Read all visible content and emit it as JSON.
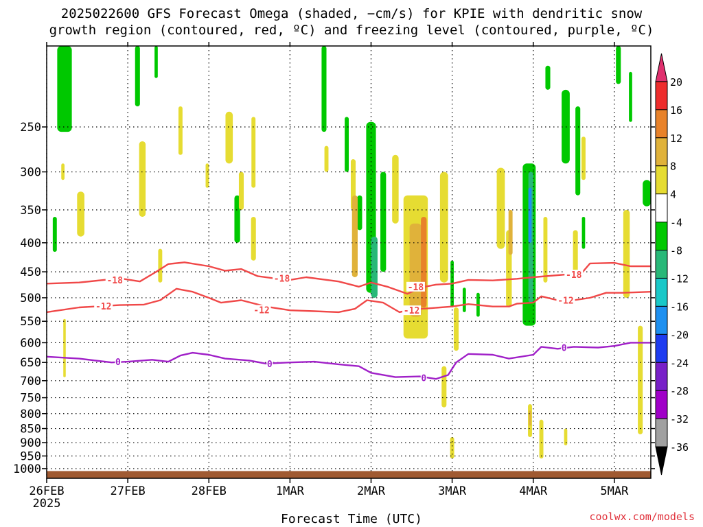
{
  "chart_data": {
    "type": "heatmap",
    "title_line1": "2025022600 GFS Forecast Omega (shaded, −cm/s) for KPIE with dendritic snow",
    "title_line2": "growth region (contoured, red, ºC) and freezing level (contoured, purple, ºC)",
    "xlabel": "Forecast Time (UTC)",
    "credit": "coolwx.com/models",
    "x_ticks": [
      {
        "label": "26FEB",
        "day": 0,
        "sublabel": "2025"
      },
      {
        "label": "27FEB",
        "day": 1
      },
      {
        "label": "28FEB",
        "day": 2
      },
      {
        "label": "1MAR",
        "day": 3
      },
      {
        "label": "2MAR",
        "day": 4
      },
      {
        "label": "3MAR",
        "day": 5
      },
      {
        "label": "4MAR",
        "day": 6
      },
      {
        "label": "5MAR",
        "day": 7
      }
    ],
    "x_range_days": [
      0,
      7.45
    ],
    "y_range_hPa": [
      1040,
      180
    ],
    "y_ticks": [
      250,
      300,
      350,
      400,
      450,
      500,
      550,
      600,
      650,
      700,
      750,
      800,
      850,
      900,
      950,
      1000
    ],
    "grid": true,
    "colorbar": {
      "labels": [
        20,
        16,
        12,
        8,
        4,
        -4,
        -8,
        -12,
        -16,
        -20,
        -24,
        -28,
        -32,
        -36
      ],
      "colors": [
        "#e0306e",
        "#ee2c2c",
        "#e8822a",
        "#e0b23a",
        "#e6dc32",
        "#ffffff",
        "#00c800",
        "#28b878",
        "#19c8c8",
        "#1e90f0",
        "#1e3cf0",
        "#7820c8",
        "#a000c8",
        "#a0a0a0",
        "#000000"
      ]
    },
    "series": [
      {
        "name": "-18",
        "color": "#f04848",
        "points": [
          [
            0,
            472
          ],
          [
            0.4,
            470
          ],
          [
            0.9,
            462
          ],
          [
            1.15,
            468
          ],
          [
            1.35,
            450
          ],
          [
            1.5,
            436
          ],
          [
            1.7,
            433
          ],
          [
            2.0,
            440
          ],
          [
            2.2,
            448
          ],
          [
            2.4,
            445
          ],
          [
            2.6,
            458
          ],
          [
            2.8,
            462
          ],
          [
            3.0,
            465
          ],
          [
            3.2,
            460
          ],
          [
            3.6,
            468
          ],
          [
            3.85,
            478
          ],
          [
            4.0,
            470
          ],
          [
            4.2,
            478
          ],
          [
            4.45,
            492
          ],
          [
            4.6,
            480
          ],
          [
            4.8,
            474
          ],
          [
            5.0,
            472
          ],
          [
            5.2,
            465
          ],
          [
            5.5,
            466
          ],
          [
            5.8,
            463
          ],
          [
            6.0,
            460
          ],
          [
            6.4,
            455
          ],
          [
            6.6,
            452
          ],
          [
            6.7,
            435
          ],
          [
            7.0,
            434
          ],
          [
            7.2,
            440
          ],
          [
            7.45,
            440
          ]
        ]
      },
      {
        "name": "-12",
        "color": "#f04848",
        "points": [
          [
            0,
            530
          ],
          [
            0.4,
            520
          ],
          [
            0.9,
            515
          ],
          [
            1.2,
            514
          ],
          [
            1.4,
            505
          ],
          [
            1.6,
            482
          ],
          [
            1.8,
            488
          ],
          [
            2.0,
            500
          ],
          [
            2.15,
            510
          ],
          [
            2.4,
            505
          ],
          [
            2.7,
            518
          ],
          [
            3.0,
            526
          ],
          [
            3.3,
            528
          ],
          [
            3.6,
            530
          ],
          [
            3.8,
            523
          ],
          [
            3.95,
            505
          ],
          [
            4.15,
            510
          ],
          [
            4.35,
            530
          ],
          [
            4.5,
            524
          ],
          [
            4.7,
            522
          ],
          [
            5.0,
            518
          ],
          [
            5.2,
            513
          ],
          [
            5.5,
            518
          ],
          [
            5.7,
            518
          ],
          [
            5.8,
            512
          ],
          [
            6.0,
            510
          ],
          [
            6.1,
            497
          ],
          [
            6.3,
            505
          ],
          [
            6.5,
            505
          ],
          [
            6.7,
            500
          ],
          [
            6.9,
            490
          ],
          [
            7.1,
            490
          ],
          [
            7.45,
            488
          ]
        ]
      },
      {
        "name": "0",
        "color": "#a020c8",
        "points": [
          [
            0,
            635
          ],
          [
            0.4,
            640
          ],
          [
            0.8,
            650
          ],
          [
            1.0,
            648
          ],
          [
            1.3,
            643
          ],
          [
            1.5,
            648
          ],
          [
            1.65,
            632
          ],
          [
            1.8,
            625
          ],
          [
            2.0,
            630
          ],
          [
            2.2,
            640
          ],
          [
            2.5,
            645
          ],
          [
            2.7,
            653
          ],
          [
            3.0,
            650
          ],
          [
            3.3,
            648
          ],
          [
            3.6,
            655
          ],
          [
            3.85,
            660
          ],
          [
            4.0,
            678
          ],
          [
            4.3,
            690
          ],
          [
            4.6,
            688
          ],
          [
            4.8,
            695
          ],
          [
            4.95,
            684
          ],
          [
            5.05,
            650
          ],
          [
            5.2,
            628
          ],
          [
            5.5,
            630
          ],
          [
            5.7,
            640
          ],
          [
            6.0,
            630
          ],
          [
            6.1,
            610
          ],
          [
            6.3,
            615
          ],
          [
            6.5,
            610
          ],
          [
            6.8,
            612
          ],
          [
            7.0,
            608
          ],
          [
            7.2,
            600
          ],
          [
            7.45,
            600
          ]
        ]
      }
    ],
    "contour_labels": [
      {
        "text": "-18",
        "day": 0.84,
        "p": 465
      },
      {
        "text": "-18",
        "day": 2.9,
        "p": 462
      },
      {
        "text": "-18",
        "day": 4.55,
        "p": 478
      },
      {
        "text": "-18",
        "day": 6.5,
        "p": 455
      },
      {
        "text": "-12",
        "day": 0.7,
        "p": 517
      },
      {
        "text": "-12",
        "day": 2.65,
        "p": 525
      },
      {
        "text": "-12",
        "day": 4.5,
        "p": 526
      },
      {
        "text": "-12",
        "day": 6.4,
        "p": 505
      },
      {
        "text": "0",
        "day": 0.88,
        "p": 648
      },
      {
        "text": "0",
        "day": 2.75,
        "p": 653
      },
      {
        "text": "0",
        "day": 4.65,
        "p": 692
      },
      {
        "text": "0",
        "day": 6.38,
        "p": 612
      }
    ],
    "shaded_patches": [
      {
        "day": 0.22,
        "w": 0.18,
        "ptop": 180,
        "pbot": 255,
        "value": -8
      },
      {
        "day": 0.1,
        "w": 0.05,
        "ptop": 360,
        "pbot": 415,
        "value": -8
      },
      {
        "day": 0.42,
        "w": 0.09,
        "ptop": 325,
        "pbot": 390,
        "value": 4
      },
      {
        "day": 0.2,
        "w": 0.04,
        "ptop": 290,
        "pbot": 310,
        "value": 4
      },
      {
        "day": 0.22,
        "w": 0.03,
        "ptop": 545,
        "pbot": 690,
        "value": 4
      },
      {
        "day": 1.18,
        "w": 0.08,
        "ptop": 265,
        "pbot": 360,
        "value": 4
      },
      {
        "day": 1.12,
        "w": 0.06,
        "ptop": 180,
        "pbot": 230,
        "value": -8
      },
      {
        "day": 1.35,
        "w": 0.04,
        "ptop": 180,
        "pbot": 205,
        "value": -8
      },
      {
        "day": 1.4,
        "w": 0.05,
        "ptop": 410,
        "pbot": 470,
        "value": 4
      },
      {
        "day": 1.65,
        "w": 0.05,
        "ptop": 230,
        "pbot": 280,
        "value": 4
      },
      {
        "day": 1.98,
        "w": 0.04,
        "ptop": 290,
        "pbot": 320,
        "value": 4
      },
      {
        "day": 2.25,
        "w": 0.09,
        "ptop": 235,
        "pbot": 290,
        "value": 4
      },
      {
        "day": 2.35,
        "w": 0.07,
        "ptop": 330,
        "pbot": 400,
        "value": -8
      },
      {
        "day": 2.4,
        "w": 0.06,
        "ptop": 300,
        "pbot": 350,
        "value": 4
      },
      {
        "day": 2.55,
        "w": 0.05,
        "ptop": 240,
        "pbot": 320,
        "value": 4
      },
      {
        "day": 2.55,
        "w": 0.06,
        "ptop": 360,
        "pbot": 430,
        "value": 4
      },
      {
        "day": 3.45,
        "w": 0.05,
        "ptop": 270,
        "pbot": 300,
        "value": 4
      },
      {
        "day": 3.42,
        "w": 0.06,
        "ptop": 180,
        "pbot": 255,
        "value": -8
      },
      {
        "day": 3.7,
        "w": 0.05,
        "ptop": 240,
        "pbot": 300,
        "value": -8
      },
      {
        "day": 3.78,
        "w": 0.06,
        "ptop": 285,
        "pbot": 350,
        "value": 4
      },
      {
        "day": 4.0,
        "w": 0.12,
        "ptop": 245,
        "pbot": 490,
        "value": -8
      },
      {
        "day": 3.86,
        "w": 0.06,
        "ptop": 330,
        "pbot": 380,
        "value": -8
      },
      {
        "day": 4.15,
        "w": 0.07,
        "ptop": 300,
        "pbot": 450,
        "value": -8
      },
      {
        "day": 4.04,
        "w": 0.08,
        "ptop": 390,
        "pbot": 500,
        "value": -12
      },
      {
        "day": 3.8,
        "w": 0.07,
        "ptop": 330,
        "pbot": 460,
        "value": 8
      },
      {
        "day": 4.3,
        "w": 0.08,
        "ptop": 280,
        "pbot": 370,
        "value": 4
      },
      {
        "day": 4.55,
        "w": 0.3,
        "ptop": 330,
        "pbot": 590,
        "value": 4
      },
      {
        "day": 4.55,
        "w": 0.15,
        "ptop": 370,
        "pbot": 540,
        "value": 8
      },
      {
        "day": 4.65,
        "w": 0.07,
        "ptop": 360,
        "pbot": 520,
        "value": 12
      },
      {
        "day": 4.9,
        "w": 0.1,
        "ptop": 300,
        "pbot": 470,
        "value": 4
      },
      {
        "day": 5.0,
        "w": 0.04,
        "ptop": 430,
        "pbot": 520,
        "value": -8
      },
      {
        "day": 5.15,
        "w": 0.04,
        "ptop": 480,
        "pbot": 530,
        "value": -8
      },
      {
        "day": 5.32,
        "w": 0.04,
        "ptop": 490,
        "pbot": 540,
        "value": -8
      },
      {
        "day": 4.9,
        "w": 0.06,
        "ptop": 660,
        "pbot": 780,
        "value": 4
      },
      {
        "day": 5.05,
        "w": 0.06,
        "ptop": 520,
        "pbot": 620,
        "value": 4
      },
      {
        "day": 5.0,
        "w": 0.05,
        "ptop": 880,
        "pbot": 960,
        "value": 4
      },
      {
        "day": 5.6,
        "w": 0.1,
        "ptop": 295,
        "pbot": 410,
        "value": 4
      },
      {
        "day": 5.7,
        "w": 0.07,
        "ptop": 380,
        "pbot": 520,
        "value": 4
      },
      {
        "day": 5.72,
        "w": 0.05,
        "ptop": 350,
        "pbot": 420,
        "value": 8
      },
      {
        "day": 5.95,
        "w": 0.16,
        "ptop": 290,
        "pbot": 560,
        "value": -8
      },
      {
        "day": 5.97,
        "w": 0.06,
        "ptop": 300,
        "pbot": 510,
        "value": -12
      },
      {
        "day": 5.96,
        "w": 0.04,
        "ptop": 320,
        "pbot": 400,
        "value": -16
      },
      {
        "day": 6.15,
        "w": 0.05,
        "ptop": 360,
        "pbot": 470,
        "value": 4
      },
      {
        "day": 5.96,
        "w": 0.05,
        "ptop": 770,
        "pbot": 880,
        "value": 4
      },
      {
        "day": 5.96,
        "w": 0.03,
        "ptop": 790,
        "pbot": 840,
        "value": 8
      },
      {
        "day": 6.1,
        "w": 0.05,
        "ptop": 820,
        "pbot": 960,
        "value": 4
      },
      {
        "day": 6.4,
        "w": 0.1,
        "ptop": 215,
        "pbot": 290,
        "value": -8
      },
      {
        "day": 6.55,
        "w": 0.06,
        "ptop": 230,
        "pbot": 330,
        "value": -8
      },
      {
        "day": 6.52,
        "w": 0.06,
        "ptop": 380,
        "pbot": 460,
        "value": 4
      },
      {
        "day": 6.62,
        "w": 0.05,
        "ptop": 260,
        "pbot": 310,
        "value": 4
      },
      {
        "day": 6.62,
        "w": 0.04,
        "ptop": 360,
        "pbot": 410,
        "value": -8
      },
      {
        "day": 6.4,
        "w": 0.04,
        "ptop": 850,
        "pbot": 910,
        "value": 4
      },
      {
        "day": 6.18,
        "w": 0.06,
        "ptop": 195,
        "pbot": 215,
        "value": -8
      },
      {
        "day": 7.05,
        "w": 0.06,
        "ptop": 180,
        "pbot": 210,
        "value": -8
      },
      {
        "day": 7.15,
        "w": 0.08,
        "ptop": 350,
        "pbot": 500,
        "value": 4
      },
      {
        "day": 7.2,
        "w": 0.04,
        "ptop": 200,
        "pbot": 245,
        "value": -8
      },
      {
        "day": 7.4,
        "w": 0.1,
        "ptop": 310,
        "pbot": 345,
        "value": -8
      },
      {
        "day": 7.32,
        "w": 0.06,
        "ptop": 560,
        "pbot": 870,
        "value": 4
      }
    ]
  }
}
